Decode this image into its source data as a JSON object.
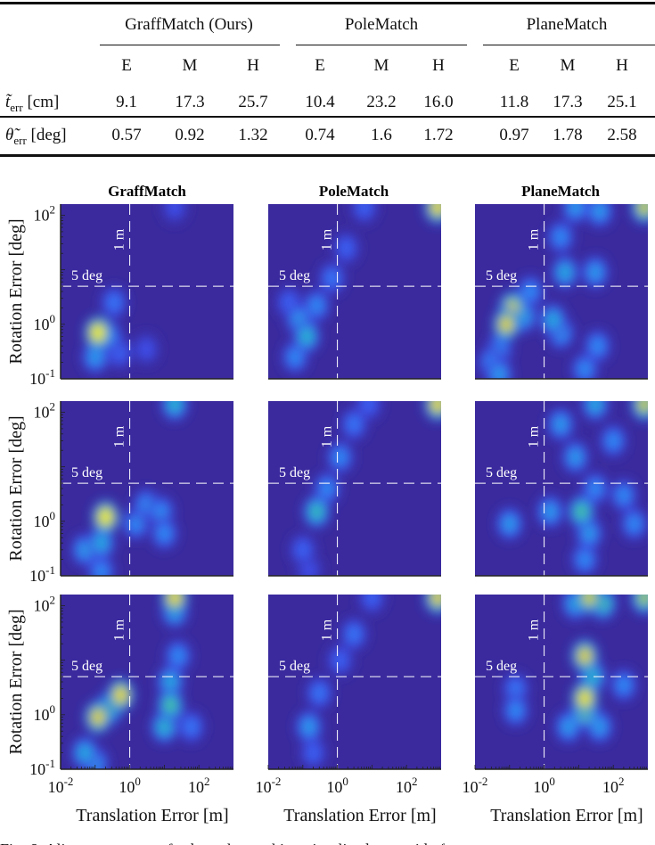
{
  "table": {
    "groups": [
      "GraffMatch (Ours)",
      "PoleMatch",
      "PlaneMatch"
    ],
    "subcolumns": [
      "E",
      "M",
      "H",
      "E",
      "M",
      "H",
      "E",
      "M",
      "H"
    ],
    "rows": [
      {
        "symbol": "t̃",
        "subscript": "err",
        "unit": "[cm]",
        "values": [
          "9.1",
          "17.3",
          "25.7",
          "10.4",
          "23.2",
          "16.0",
          "11.8",
          "17.3",
          "25.1"
        ]
      },
      {
        "symbol": "θ̃",
        "subscript": "err",
        "unit": "[deg]",
        "values": [
          "0.57",
          "0.92",
          "1.32",
          "0.74",
          "1.6",
          "1.72",
          "0.97",
          "1.78",
          "2.58"
        ]
      }
    ]
  },
  "chart_data": {
    "type": "heatmap",
    "description": "3x3 grid of 2D density heatmaps of alignment errors (rows: E, M, H difficulty; columns: methods)",
    "column_titles": [
      "GraffMatch",
      "PoleMatch",
      "PlaneMatch"
    ],
    "xlabel": "Translation Error [m]",
    "ylabel": "Rotation Error [deg]",
    "xscale": "log",
    "yscale": "log",
    "xlim": [
      0.01,
      1000
    ],
    "ylim": [
      0.1,
      160
    ],
    "x_ticks": [
      {
        "value": 0.01,
        "base": "10",
        "exp": "-2"
      },
      {
        "value": 1,
        "base": "10",
        "exp": "0"
      },
      {
        "value": 100,
        "base": "10",
        "exp": "2"
      }
    ],
    "y_ticks": [
      {
        "value": 0.1,
        "base": "10",
        "exp": "-1"
      },
      {
        "value": 1,
        "base": "10",
        "exp": "0"
      },
      {
        "value": 100,
        "base": "10",
        "exp": "2"
      }
    ],
    "thresholds": {
      "translation": {
        "value": 1,
        "label": "1 m"
      },
      "rotation": {
        "value": 5,
        "label": "5 deg"
      }
    },
    "colormap": [
      "#3a2a9e",
      "#3d4ff0",
      "#2e8ef5",
      "#1bb6c4",
      "#5cc778",
      "#c6c232",
      "#fbd21a",
      "#f9f91e"
    ],
    "panels": [
      {
        "row": 0,
        "col": 0,
        "blobs": [
          [
            0.12,
            0.7,
            1.0
          ],
          [
            0.25,
            0.6,
            0.3
          ],
          [
            0.1,
            0.25,
            0.35
          ],
          [
            0.35,
            2.5,
            0.25
          ],
          [
            0.5,
            0.3,
            0.2
          ],
          [
            3,
            0.35,
            0.15
          ],
          [
            20,
            140,
            0.15
          ]
        ]
      },
      {
        "row": 0,
        "col": 1,
        "blobs": [
          [
            0.08,
            1.2,
            0.35
          ],
          [
            0.13,
            0.6,
            0.45
          ],
          [
            0.06,
            0.25,
            0.3
          ],
          [
            0.25,
            2.2,
            0.3
          ],
          [
            0.7,
            7,
            0.25
          ],
          [
            1.8,
            25,
            0.2
          ],
          [
            6,
            140,
            0.2
          ],
          [
            800,
            140,
            0.9
          ],
          [
            0.04,
            2.5,
            0.2
          ]
        ]
      },
      {
        "row": 0,
        "col": 2,
        "blobs": [
          [
            0.12,
            2.0,
            0.8
          ],
          [
            0.08,
            1.0,
            0.85
          ],
          [
            0.05,
            0.35,
            0.3
          ],
          [
            0.05,
            0.12,
            0.35
          ],
          [
            0.25,
            1.4,
            0.4
          ],
          [
            1.8,
            1.2,
            0.4
          ],
          [
            3,
            0.7,
            0.35
          ],
          [
            0.4,
            4,
            0.3
          ],
          [
            4,
            9,
            0.4
          ],
          [
            30,
            9,
            0.35
          ],
          [
            3,
            40,
            0.3
          ],
          [
            8,
            140,
            0.35
          ],
          [
            40,
            120,
            0.35
          ],
          [
            800,
            140,
            0.8
          ],
          [
            15,
            0.15,
            0.3
          ],
          [
            35,
            0.4,
            0.3
          ],
          [
            0.03,
            0.2,
            0.3
          ]
        ]
      },
      {
        "row": 1,
        "col": 0,
        "blobs": [
          [
            0.2,
            1.2,
            1.0
          ],
          [
            0.15,
            0.4,
            0.4
          ],
          [
            0.05,
            0.3,
            0.35
          ],
          [
            0.15,
            0.12,
            0.3
          ],
          [
            1.5,
            0.9,
            0.3
          ],
          [
            3,
            2,
            0.3
          ],
          [
            8,
            1.5,
            0.3
          ],
          [
            10,
            0.6,
            0.3
          ],
          [
            20,
            140,
            0.45
          ]
        ]
      },
      {
        "row": 1,
        "col": 1,
        "blobs": [
          [
            0.25,
            1.5,
            0.5
          ],
          [
            0.5,
            4,
            0.3
          ],
          [
            1.2,
            15,
            0.3
          ],
          [
            3,
            60,
            0.25
          ],
          [
            8,
            140,
            0.2
          ],
          [
            800,
            140,
            0.9
          ],
          [
            0.1,
            0.3,
            0.2
          ],
          [
            0.15,
            0.13,
            0.15
          ]
        ]
      },
      {
        "row": 1,
        "col": 2,
        "blobs": [
          [
            0.1,
            0.9,
            0.35
          ],
          [
            1.5,
            1.5,
            0.35
          ],
          [
            12,
            1.5,
            0.55
          ],
          [
            20,
            0.6,
            0.35
          ],
          [
            8,
            15,
            0.35
          ],
          [
            30,
            4,
            0.3
          ],
          [
            3,
            60,
            0.35
          ],
          [
            30,
            140,
            0.4
          ],
          [
            800,
            140,
            0.8
          ],
          [
            100,
            30,
            0.3
          ],
          [
            200,
            3,
            0.3
          ],
          [
            15,
            0.2,
            0.3
          ],
          [
            400,
            0.9,
            0.3
          ]
        ]
      },
      {
        "row": 2,
        "col": 0,
        "blobs": [
          [
            0.55,
            2.3,
            0.9
          ],
          [
            0.12,
            0.9,
            0.85
          ],
          [
            0.25,
            1.3,
            0.6
          ],
          [
            0.05,
            0.2,
            0.4
          ],
          [
            0.1,
            0.13,
            0.35
          ],
          [
            15,
            1.5,
            0.55
          ],
          [
            10,
            0.6,
            0.45
          ],
          [
            15,
            4,
            0.4
          ],
          [
            20,
            140,
            0.9
          ],
          [
            20,
            80,
            0.45
          ],
          [
            25,
            12,
            0.3
          ],
          [
            60,
            0.6,
            0.25
          ]
        ]
      },
      {
        "row": 2,
        "col": 1,
        "blobs": [
          [
            0.15,
            0.6,
            0.35
          ],
          [
            0.3,
            2.5,
            0.25
          ],
          [
            1.2,
            10,
            0.2
          ],
          [
            3,
            30,
            0.25
          ],
          [
            10,
            140,
            0.2
          ],
          [
            800,
            140,
            0.85
          ],
          [
            0.2,
            0.2,
            0.2
          ]
        ]
      },
      {
        "row": 2,
        "col": 2,
        "blobs": [
          [
            15,
            2.0,
            0.95
          ],
          [
            15,
            1.2,
            0.75
          ],
          [
            15,
            12,
            0.85
          ],
          [
            25,
            5,
            0.45
          ],
          [
            20,
            140,
            0.8
          ],
          [
            50,
            110,
            0.55
          ],
          [
            8,
            110,
            0.4
          ],
          [
            800,
            140,
            0.7
          ],
          [
            5,
            0.6,
            0.35
          ],
          [
            0.15,
            1.2,
            0.3
          ],
          [
            0.15,
            3,
            0.25
          ],
          [
            200,
            3.5,
            0.3
          ],
          [
            40,
            0.6,
            0.35
          ]
        ]
      }
    ]
  },
  "caption_fragment": "Fig. 6: Alignment errors of subgraph-matching visualized as a grid of"
}
